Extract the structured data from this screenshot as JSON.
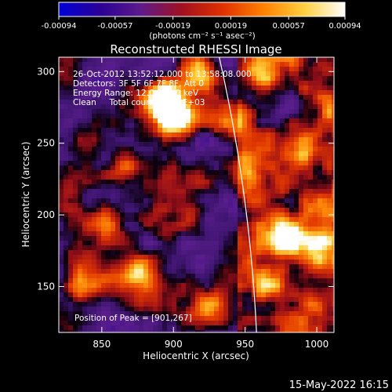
{
  "chart_data": {
    "type": "heatmap",
    "title": "Reconstructed RHESSI Image",
    "xlabel": "Heliocentric X (arcsec)",
    "ylabel": "Heliocentric Y (arcsec)",
    "xlim": [
      820,
      1012
    ],
    "ylim": [
      118,
      310
    ],
    "x_ticks": [
      850,
      900,
      950,
      1000
    ],
    "y_ticks": [
      150,
      200,
      250,
      300
    ],
    "colorbar": {
      "ticks": [
        -0.00094,
        -0.00057,
        -0.00019,
        0.00019,
        0.00057,
        0.00094
      ],
      "tick_labels": [
        "-0.00094",
        "-0.00057",
        "-0.00019",
        "0.00019",
        "0.00057",
        "0.00094"
      ],
      "units_label": "(photons cm⁻² s⁻¹ asec⁻²)",
      "colors": [
        "#0000d8",
        "#2a0096",
        "#5e1a8c",
        "#a01020",
        "#e03000",
        "#ff8000",
        "#ffd040",
        "#ffffff"
      ]
    },
    "info_lines": [
      "26-Oct-2012 13:52:12.000 to 13:58:08.000",
      "Detectors: 3F 5F 6F 7F 8F, Att 0",
      "Energy Range: 12.0 - 25.0 keV",
      "Clean     Total counts: 5.24E+03"
    ],
    "peak_label": "Position of Peak = [901,267]",
    "peak_position": [
      901,
      267
    ],
    "limb_x_at_top": 935,
    "limb_x_at_bottom": 958,
    "hotspots": [
      {
        "x": 901,
        "y": 267,
        "v": 1.0
      },
      {
        "x": 893,
        "y": 282,
        "v": 0.85
      },
      {
        "x": 918,
        "y": 300,
        "v": 0.75
      },
      {
        "x": 875,
        "y": 162,
        "v": 0.7
      },
      {
        "x": 835,
        "y": 150,
        "v": 0.65
      },
      {
        "x": 980,
        "y": 185,
        "v": 0.8
      },
      {
        "x": 1000,
        "y": 180,
        "v": 0.7
      },
      {
        "x": 965,
        "y": 150,
        "v": 0.6
      },
      {
        "x": 990,
        "y": 245,
        "v": 0.55
      },
      {
        "x": 940,
        "y": 265,
        "v": 0.5
      },
      {
        "x": 960,
        "y": 300,
        "v": 0.55
      },
      {
        "x": 865,
        "y": 232,
        "v": 0.45
      },
      {
        "x": 855,
        "y": 195,
        "v": 0.5
      },
      {
        "x": 925,
        "y": 130,
        "v": 0.45
      },
      {
        "x": 1005,
        "y": 205,
        "v": 0.55
      },
      {
        "x": 945,
        "y": 228,
        "v": 0.4
      }
    ]
  },
  "footer": {
    "timestamp": "15-May-2022 16:15"
  }
}
